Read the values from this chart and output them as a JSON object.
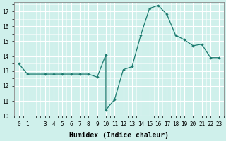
{
  "xlabel": "Humidex (Indice chaleur)",
  "x": [
    0,
    1,
    3,
    4,
    5,
    6,
    7,
    8,
    9,
    10,
    10,
    11,
    12,
    13,
    14,
    15,
    16,
    17,
    18,
    19,
    20,
    21,
    22,
    23
  ],
  "y": [
    13.5,
    12.8,
    12.8,
    12.8,
    12.8,
    12.8,
    12.8,
    12.8,
    12.6,
    14.1,
    10.4,
    11.1,
    13.1,
    13.3,
    15.4,
    17.2,
    17.4,
    16.8,
    15.4,
    15.1,
    14.7,
    14.8,
    13.9,
    13.9
  ],
  "line_color": "#1a7a6e",
  "marker": "D",
  "marker_size": 1.8,
  "linewidth": 0.9,
  "ylim": [
    10,
    17.6
  ],
  "yticks": [
    10,
    11,
    12,
    13,
    14,
    15,
    16,
    17
  ],
  "xlim": [
    -0.5,
    23.5
  ],
  "xticks": [
    0,
    1,
    3,
    4,
    5,
    6,
    7,
    8,
    9,
    10,
    11,
    12,
    13,
    14,
    15,
    16,
    17,
    18,
    19,
    20,
    21,
    22,
    23
  ],
  "bg_color": "#cff0eb",
  "grid_color": "#ffffff",
  "axis_color": "#888888",
  "xlabel_fontsize": 7,
  "tick_fontsize": 5.5
}
